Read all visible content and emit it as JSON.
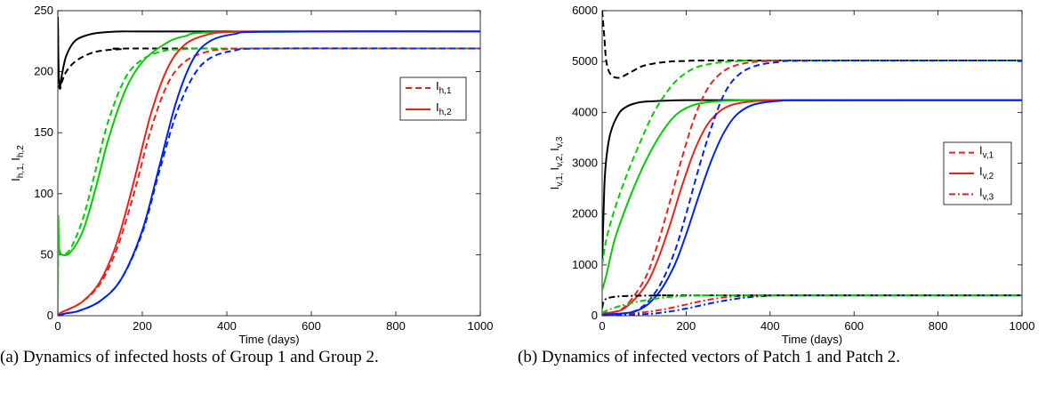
{
  "chart_data": [
    {
      "type": "line",
      "panel_label": "(a)",
      "caption": "(a) Dynamics of infected hosts of Group 1 and Group 2.",
      "xlabel": "Time (days)",
      "ylabel": "I_{h,1}, I_{h,2}",
      "xlim": [
        0,
        1000
      ],
      "ylim": [
        0,
        250
      ],
      "xticks": [
        0,
        200,
        400,
        600,
        800,
        1000
      ],
      "yticks": [
        0,
        50,
        100,
        150,
        200,
        250
      ],
      "legend": {
        "placement": "right",
        "entries": [
          {
            "base": "I",
            "sub": "h,1",
            "style": "dashed",
            "color": "#e8231c"
          },
          {
            "base": "I",
            "sub": "h,2",
            "style": "solid",
            "color": "#e8231c"
          }
        ]
      },
      "series": [
        {
          "color": "#000000",
          "style": "dashed",
          "x": [
            0,
            2,
            5,
            10,
            20,
            40,
            70,
            100,
            150,
            200,
            1000
          ],
          "y": [
            245,
            195,
            186,
            192,
            200,
            208,
            214,
            217,
            218.5,
            219,
            219
          ]
        },
        {
          "color": "#000000",
          "style": "solid",
          "x": [
            0,
            2,
            5,
            10,
            20,
            40,
            70,
            100,
            150,
            250,
            1000
          ],
          "y": [
            245,
            200,
            188,
            198,
            213,
            225,
            230,
            232,
            233,
            233,
            233
          ]
        },
        {
          "color": "#00cc00",
          "style": "dashed",
          "x": [
            0,
            1,
            3,
            10,
            30,
            60,
            90,
            120,
            160,
            200,
            250,
            300,
            400,
            1000
          ],
          "y": [
            0,
            60,
            55,
            50,
            55,
            80,
            120,
            160,
            195,
            210,
            217,
            218.5,
            219,
            219
          ]
        },
        {
          "color": "#00cc00",
          "style": "solid",
          "x": [
            0,
            1,
            3,
            10,
            30,
            60,
            90,
            120,
            160,
            200,
            250,
            300,
            400,
            1000
          ],
          "y": [
            0,
            80,
            55,
            50,
            52,
            70,
            105,
            145,
            185,
            208,
            222,
            229,
            232.5,
            233
          ]
        },
        {
          "color": "#e8231c",
          "style": "dashed",
          "x": [
            0,
            10,
            30,
            60,
            100,
            140,
            180,
            220,
            260,
            300,
            350,
            400,
            500,
            1000
          ],
          "y": [
            1,
            3,
            6,
            12,
            26,
            55,
            100,
            152,
            190,
            208,
            216,
            218.5,
            219,
            219
          ]
        },
        {
          "color": "#e8231c",
          "style": "solid",
          "x": [
            0,
            10,
            30,
            60,
            100,
            140,
            180,
            220,
            260,
            300,
            350,
            400,
            500,
            1000
          ],
          "y": [
            1,
            3,
            6,
            12,
            28,
            60,
            110,
            165,
            203,
            222,
            230,
            232.5,
            233,
            233
          ]
        },
        {
          "color": "#0022ee",
          "style": "dashed",
          "x": [
            0,
            20,
            50,
            100,
            150,
            200,
            240,
            280,
            320,
            360,
            420,
            500,
            1000
          ],
          "y": [
            0,
            2,
            4,
            12,
            30,
            68,
            118,
            165,
            196,
            211,
            217.5,
            219,
            219
          ]
        },
        {
          "color": "#0022ee",
          "style": "solid",
          "x": [
            0,
            20,
            50,
            100,
            150,
            200,
            240,
            280,
            320,
            360,
            420,
            500,
            1000
          ],
          "y": [
            0,
            2,
            4,
            12,
            30,
            70,
            122,
            175,
            210,
            225,
            231,
            232.8,
            233
          ]
        }
      ]
    },
    {
      "type": "line",
      "panel_label": "(b)",
      "caption": "(b) Dynamics of infected vectors of Patch 1 and Patch 2.",
      "xlabel": "Time (days)",
      "ylabel": "I_{v,1}, I_{v,2}, I_{v,3}",
      "xlim": [
        0,
        1000
      ],
      "ylim": [
        0,
        6000
      ],
      "xticks": [
        0,
        200,
        400,
        600,
        800,
        1000
      ],
      "yticks": [
        0,
        1000,
        2000,
        3000,
        4000,
        5000,
        6000
      ],
      "legend": {
        "placement": "right",
        "entries": [
          {
            "base": "I",
            "sub": "v,1",
            "style": "dashed",
            "color": "#e8231c"
          },
          {
            "base": "I",
            "sub": "v,2",
            "style": "solid",
            "color": "#e8231c"
          },
          {
            "base": "I",
            "sub": "v,3",
            "style": "dashdot",
            "color": "#e8231c"
          }
        ]
      },
      "series": [
        {
          "color": "#000000",
          "style": "dashed",
          "x": [
            0,
            5,
            10,
            20,
            40,
            70,
            100,
            150,
            200,
            300,
            1000
          ],
          "y": [
            6000,
            5500,
            5000,
            4750,
            4680,
            4800,
            4920,
            4990,
            5010,
            5020,
            5020
          ]
        },
        {
          "color": "#000000",
          "style": "solid",
          "x": [
            0,
            5,
            10,
            20,
            40,
            60,
            80,
            100,
            150,
            200,
            300,
            1000
          ],
          "y": [
            1000,
            2500,
            3100,
            3600,
            3980,
            4120,
            4180,
            4210,
            4230,
            4240,
            4240,
            4240
          ]
        },
        {
          "color": "#00cc00",
          "style": "dashed",
          "x": [
            0,
            10,
            30,
            60,
            90,
            120,
            150,
            180,
            220,
            270,
            330,
            400,
            1000
          ],
          "y": [
            1000,
            1500,
            2100,
            2800,
            3400,
            3950,
            4350,
            4650,
            4870,
            4970,
            5010,
            5020,
            5020
          ]
        },
        {
          "color": "#00cc00",
          "style": "solid",
          "x": [
            0,
            10,
            30,
            60,
            90,
            120,
            150,
            180,
            220,
            270,
            330,
            400,
            1000
          ],
          "y": [
            500,
            800,
            1500,
            2200,
            2800,
            3300,
            3700,
            3980,
            4150,
            4215,
            4235,
            4240,
            4240
          ]
        },
        {
          "color": "#e8231c",
          "style": "dashed",
          "x": [
            0,
            50,
            100,
            130,
            160,
            190,
            220,
            250,
            280,
            310,
            350,
            400,
            450,
            1000
          ],
          "y": [
            50,
            150,
            700,
            1350,
            2200,
            3100,
            3900,
            4450,
            4750,
            4900,
            4980,
            5010,
            5020,
            5020
          ]
        },
        {
          "color": "#e8231c",
          "style": "solid",
          "x": [
            0,
            50,
            100,
            130,
            160,
            190,
            220,
            250,
            280,
            310,
            350,
            400,
            450,
            1000
          ],
          "y": [
            50,
            130,
            550,
            1050,
            1750,
            2550,
            3250,
            3750,
            4020,
            4150,
            4210,
            4235,
            4240,
            4240
          ]
        },
        {
          "color": "#e8231c",
          "style": "dashdot",
          "x": [
            0,
            50,
            100,
            150,
            200,
            250,
            300,
            350,
            400,
            1000
          ],
          "y": [
            30,
            40,
            70,
            130,
            220,
            310,
            370,
            395,
            400,
            400
          ]
        },
        {
          "color": "#0022ee",
          "style": "dashed",
          "x": [
            0,
            80,
            130,
            170,
            200,
            230,
            260,
            290,
            320,
            360,
            420,
            500,
            1000
          ],
          "y": [
            20,
            100,
            500,
            1200,
            2000,
            2900,
            3700,
            4350,
            4700,
            4900,
            4990,
            5015,
            5020
          ]
        },
        {
          "color": "#0022ee",
          "style": "solid",
          "x": [
            0,
            80,
            130,
            170,
            200,
            230,
            260,
            290,
            320,
            360,
            420,
            500,
            1000
          ],
          "y": [
            20,
            90,
            400,
            950,
            1600,
            2350,
            3050,
            3600,
            3950,
            4150,
            4225,
            4238,
            4240
          ]
        },
        {
          "color": "#0022ee",
          "style": "dashdot",
          "x": [
            0,
            100,
            150,
            200,
            250,
            300,
            350,
            400,
            450,
            1000
          ],
          "y": [
            10,
            30,
            70,
            140,
            230,
            310,
            365,
            392,
            400,
            400
          ]
        },
        {
          "color": "#000000",
          "style": "dashdot",
          "x": [
            0,
            5,
            20,
            50,
            100,
            150,
            200,
            1000
          ],
          "y": [
            150,
            300,
            360,
            385,
            395,
            400,
            400,
            400
          ]
        },
        {
          "color": "#00cc00",
          "style": "dashdot",
          "x": [
            0,
            10,
            30,
            60,
            100,
            150,
            200,
            250,
            300,
            1000
          ],
          "y": [
            50,
            100,
            160,
            230,
            300,
            360,
            390,
            398,
            400,
            400
          ]
        }
      ]
    }
  ]
}
